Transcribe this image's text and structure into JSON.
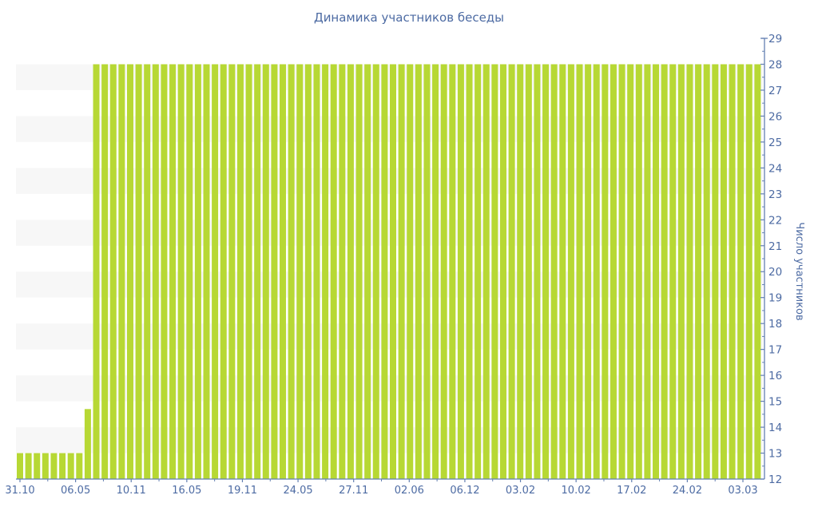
{
  "chart_data": {
    "type": "bar",
    "title": "Динамика участников беседы",
    "ylabel": "Число участников",
    "ylabel_side": "right",
    "xlabel": "",
    "ylim": [
      12,
      29
    ],
    "y_ticks": [
      12,
      13,
      14,
      15,
      16,
      17,
      18,
      19,
      20,
      21,
      22,
      23,
      24,
      25,
      26,
      27,
      28,
      29
    ],
    "y_minor_tick_step": 0.5,
    "x_tick_labels": [
      "31.10",
      "06.05",
      "10.11",
      "16.05",
      "19.11",
      "24.05",
      "27.11",
      "02.06",
      "06.12",
      "03.02",
      "10.02",
      "17.02",
      "24.02",
      "03.03"
    ],
    "values": [
      13,
      13,
      13,
      13,
      13,
      13,
      13,
      13,
      14.7,
      28,
      28,
      28,
      28,
      28,
      28,
      28,
      28,
      28,
      28,
      28,
      28,
      28,
      28,
      28,
      28,
      28,
      28,
      28,
      28,
      28,
      28,
      28,
      28,
      28,
      28,
      28,
      28,
      28,
      28,
      28,
      28,
      28,
      28,
      28,
      28,
      28,
      28,
      28,
      28,
      28,
      28,
      28,
      28,
      28,
      28,
      28,
      28,
      28,
      28,
      28,
      28,
      28,
      28,
      28,
      28,
      28,
      28,
      28,
      28,
      28,
      28,
      28,
      28,
      28,
      28,
      28,
      28,
      28,
      28,
      28,
      28,
      28,
      28,
      28,
      28,
      28,
      28,
      28
    ],
    "grid": "horizontal-stripes",
    "legend": null,
    "bar_color": "#b7d834",
    "text_color": "#4d6ba3",
    "axis_color": "#6480b2",
    "stripe_color": "#f7f7f7",
    "background_color": "#ffffff"
  }
}
